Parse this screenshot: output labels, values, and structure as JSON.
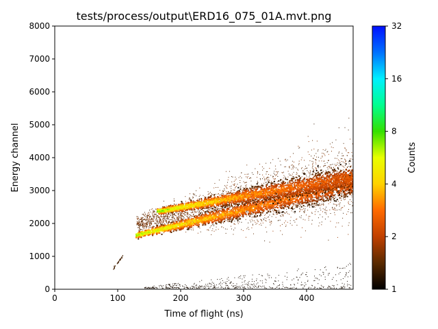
{
  "chart_data": {
    "type": "heatmap",
    "title": "tests/process/output\\ERD16_075_01A.mvt.png",
    "xlabel": "Time of flight (ns)",
    "ylabel": "Energy channel",
    "xlim": [
      0,
      474
    ],
    "ylim": [
      0,
      8000
    ],
    "x_ticks": [
      0,
      100,
      200,
      300,
      400
    ],
    "y_ticks": [
      0,
      1000,
      2000,
      3000,
      4000,
      5000,
      6000,
      7000,
      8000
    ],
    "colorbar": {
      "label": "Counts",
      "scale": "log2",
      "range": [
        1,
        32
      ],
      "ticks": [
        1,
        2,
        4,
        8,
        16,
        32
      ],
      "colormap": "nipy_spectral-like",
      "colors": [
        "#000000",
        "#5a2a00",
        "#c04000",
        "#ff6a00",
        "#ffd200",
        "#e8ff00",
        "#34e000",
        "#00ff90",
        "#00f0ff",
        "#0070ff",
        "#0010ff"
      ]
    },
    "bands": [
      {
        "x_start": 128,
        "x_end": 474,
        "y_start": 1660,
        "y_end": 3220,
        "peak_counts": 8
      },
      {
        "x_start": 162,
        "x_end": 474,
        "y_start": 2380,
        "y_end": 3440,
        "peak_counts": 8
      }
    ],
    "scatter_cloud": {
      "x_range": [
        130,
        474
      ],
      "y_center": [
        2000,
        3400
      ],
      "spread": [
        200,
        1100
      ]
    },
    "faint_streak": [
      [
        92,
        620
      ],
      [
        108,
        1050
      ]
    ]
  }
}
